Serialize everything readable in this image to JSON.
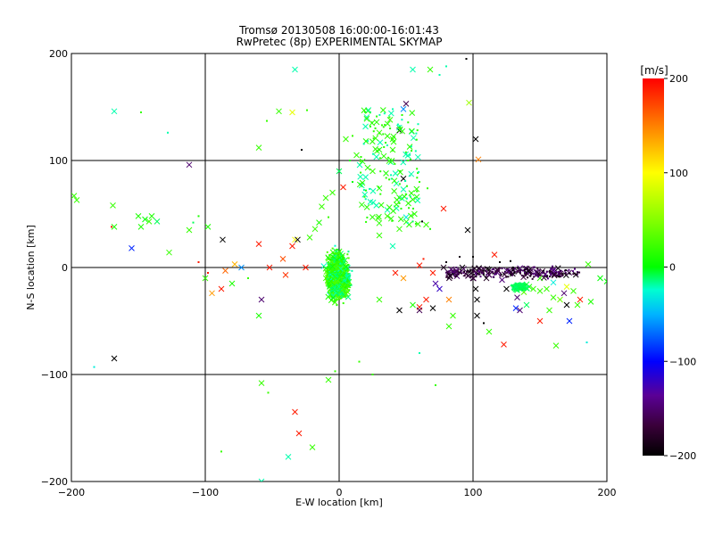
{
  "chart_data": {
    "type": "scatter",
    "title": "Tromsø 20130508 16:00:00-16:01:43",
    "subtitle": "RwPretec (8p) EXPERIMENTAL SKYMAP",
    "xlabel": "E-W location [km]",
    "ylabel": "N-S location [km]",
    "xlim": [
      -200,
      200
    ],
    "ylim": [
      -200,
      200
    ],
    "xticks": [
      "−200",
      "−100",
      "0",
      "100",
      "200"
    ],
    "yticks": [
      "−200",
      "−100",
      "0",
      "100",
      "200"
    ],
    "grid": true,
    "colorbar": {
      "label": "[m/s]",
      "range": [
        -200,
        200
      ],
      "ticks": [
        "200",
        "100",
        "0",
        "−100",
        "−200"
      ]
    },
    "markers": {
      "large": "cross",
      "small": "dot"
    },
    "points": [
      [
        -198,
        67,
        20,
        "x"
      ],
      [
        -196,
        63,
        20,
        "x"
      ],
      [
        -168,
        146,
        -20,
        "x"
      ],
      [
        -148,
        145,
        20,
        "."
      ],
      [
        -128,
        126,
        -20,
        "."
      ],
      [
        -112,
        96,
        -150,
        "x"
      ],
      [
        -169,
        58,
        20,
        "x"
      ],
      [
        -168,
        38,
        10,
        "x"
      ],
      [
        -150,
        48,
        10,
        "x"
      ],
      [
        -145,
        45,
        0,
        "x"
      ],
      [
        -140,
        48,
        10,
        "x"
      ],
      [
        -142,
        43,
        20,
        "x"
      ],
      [
        -148,
        38,
        10,
        "x"
      ],
      [
        -136,
        43,
        -10,
        "x"
      ],
      [
        -155,
        18,
        -90,
        "x"
      ],
      [
        -127,
        14,
        20,
        "x"
      ],
      [
        -112,
        35,
        20,
        "x"
      ],
      [
        -109,
        42,
        -10,
        "."
      ],
      [
        -98,
        38,
        10,
        "x"
      ],
      [
        -105,
        48,
        10,
        "."
      ],
      [
        -170,
        38,
        190,
        "."
      ],
      [
        -168,
        -85,
        -200,
        "x"
      ],
      [
        -183,
        -93,
        -30,
        "."
      ],
      [
        -87,
        26,
        -200,
        "x"
      ],
      [
        -85,
        -3,
        160,
        "x"
      ],
      [
        -88,
        -20,
        190,
        "x"
      ],
      [
        -95,
        -24,
        140,
        "x"
      ],
      [
        -80,
        -15,
        10,
        "x"
      ],
      [
        -60,
        22,
        190,
        "x"
      ],
      [
        -52,
        0,
        190,
        "x"
      ],
      [
        -42,
        8,
        170,
        "x"
      ],
      [
        -35,
        20,
        190,
        "x"
      ],
      [
        -33,
        26,
        100,
        "x"
      ],
      [
        -31,
        26,
        -200,
        "x"
      ],
      [
        -25,
        0,
        190,
        "x"
      ],
      [
        -40,
        -7,
        180,
        "x"
      ],
      [
        -58,
        -30,
        -150,
        "x"
      ],
      [
        -60,
        -45,
        10,
        "x"
      ],
      [
        -68,
        -10,
        20,
        "."
      ],
      [
        -73,
        0,
        -60,
        "x"
      ],
      [
        -78,
        3,
        130,
        "x"
      ],
      [
        -98,
        -5,
        190,
        "."
      ],
      [
        -100,
        -10,
        20,
        "x"
      ],
      [
        -105,
        5,
        190,
        "."
      ],
      [
        -60,
        112,
        20,
        "x"
      ],
      [
        -54,
        137,
        20,
        "."
      ],
      [
        -45,
        146,
        20,
        "x"
      ],
      [
        -35,
        145,
        90,
        "x"
      ],
      [
        -33,
        185,
        -20,
        "x"
      ],
      [
        -28,
        110,
        -200,
        "."
      ],
      [
        -24,
        147,
        20,
        "."
      ],
      [
        -58,
        -108,
        20,
        "x"
      ],
      [
        -53,
        -117,
        20,
        "."
      ],
      [
        -33,
        -135,
        190,
        "x"
      ],
      [
        -30,
        -155,
        190,
        "x"
      ],
      [
        -20,
        -168,
        20,
        "x"
      ],
      [
        -38,
        -177,
        -20,
        "x"
      ],
      [
        -58,
        -200,
        -20,
        "x"
      ],
      [
        -88,
        -172,
        20,
        "."
      ],
      [
        -8,
        -105,
        20,
        "x"
      ],
      [
        -3,
        -97,
        20,
        "."
      ],
      [
        15,
        -88,
        20,
        "."
      ],
      [
        25,
        -100,
        20,
        "."
      ],
      [
        72,
        -110,
        20,
        "."
      ],
      [
        55,
        185,
        -20,
        "x"
      ],
      [
        68,
        185,
        20,
        "x"
      ],
      [
        75,
        180,
        -20,
        "."
      ],
      [
        80,
        188,
        -20,
        "."
      ],
      [
        95,
        195,
        -200,
        "."
      ],
      [
        97,
        154,
        60,
        "x"
      ],
      [
        48,
        148,
        -60,
        "x"
      ],
      [
        50,
        153,
        -160,
        "x"
      ],
      [
        40,
        148,
        -20,
        "."
      ],
      [
        38,
        138,
        20,
        "x"
      ],
      [
        32,
        133,
        20,
        "."
      ],
      [
        45,
        128,
        -200,
        "x"
      ],
      [
        40,
        120,
        20,
        "x"
      ],
      [
        30,
        126,
        20,
        "x"
      ],
      [
        20,
        118,
        10,
        "x"
      ],
      [
        13,
        105,
        20,
        "x"
      ],
      [
        8,
        100,
        10,
        "."
      ],
      [
        30,
        110,
        10,
        "x"
      ],
      [
        40,
        110,
        20,
        "x"
      ],
      [
        25,
        90,
        20,
        "x"
      ],
      [
        35,
        88,
        10,
        "x"
      ],
      [
        48,
        83,
        -200,
        "x"
      ],
      [
        53,
        86,
        -20,
        "."
      ],
      [
        60,
        80,
        20,
        "."
      ],
      [
        66,
        74,
        20,
        "."
      ],
      [
        58,
        66,
        10,
        "x"
      ],
      [
        45,
        60,
        20,
        "."
      ],
      [
        36,
        48,
        20,
        "x"
      ],
      [
        29,
        46,
        20,
        "x"
      ],
      [
        48,
        73,
        -20,
        "x"
      ],
      [
        30,
        74,
        10,
        "x"
      ],
      [
        20,
        72,
        10,
        "."
      ],
      [
        10,
        80,
        0,
        "."
      ],
      [
        0,
        90,
        -10,
        "x"
      ],
      [
        5,
        120,
        20,
        "x"
      ],
      [
        10,
        123,
        20,
        "."
      ],
      [
        3,
        75,
        190,
        "x"
      ],
      [
        -5,
        70,
        20,
        "x"
      ],
      [
        -10,
        65,
        20,
        "x"
      ],
      [
        -13,
        57,
        20,
        "x"
      ],
      [
        -8,
        47,
        20,
        "."
      ],
      [
        -15,
        42,
        10,
        "x"
      ],
      [
        -18,
        36,
        20,
        "x"
      ],
      [
        -22,
        28,
        20,
        "x"
      ],
      [
        30,
        30,
        20,
        "x"
      ],
      [
        40,
        20,
        -20,
        "x"
      ],
      [
        45,
        36,
        20,
        "x"
      ],
      [
        50,
        47,
        -30,
        "x"
      ],
      [
        55,
        43,
        -10,
        "."
      ],
      [
        62,
        43,
        -200,
        "."
      ],
      [
        65,
        40,
        20,
        "x"
      ],
      [
        68,
        36,
        10,
        "."
      ],
      [
        78,
        55,
        190,
        "x"
      ],
      [
        96,
        35,
        -200,
        "x"
      ],
      [
        102,
        120,
        -200,
        "x"
      ],
      [
        104,
        101,
        150,
        "x"
      ],
      [
        42,
        -5,
        190,
        "x"
      ],
      [
        48,
        -10,
        140,
        "x"
      ],
      [
        60,
        2,
        190,
        "x"
      ],
      [
        63,
        8,
        190,
        "."
      ],
      [
        70,
        -5,
        190,
        "x"
      ],
      [
        65,
        -30,
        190,
        "x"
      ],
      [
        60,
        -37,
        190,
        "x"
      ],
      [
        70,
        -38,
        -200,
        "x"
      ],
      [
        60,
        -40,
        -160,
        "x"
      ],
      [
        55,
        -35,
        10,
        "x"
      ],
      [
        45,
        -40,
        -200,
        "x"
      ],
      [
        30,
        -30,
        20,
        "x"
      ],
      [
        85,
        -45,
        20,
        "x"
      ],
      [
        82,
        -30,
        150,
        "x"
      ],
      [
        88,
        -8,
        -150,
        "x"
      ],
      [
        82,
        -4,
        -180,
        "."
      ],
      [
        92,
        0,
        -200,
        "x"
      ],
      [
        78,
        0,
        -180,
        "x"
      ],
      [
        75,
        -20,
        -120,
        "x"
      ],
      [
        72,
        -15,
        -130,
        "x"
      ],
      [
        80,
        5,
        -190,
        "."
      ],
      [
        90,
        10,
        -190,
        "."
      ],
      [
        100,
        10,
        -200,
        "."
      ],
      [
        102,
        -20,
        -200,
        "x"
      ],
      [
        103,
        -30,
        -200,
        "x"
      ],
      [
        110,
        -10,
        -180,
        "x"
      ],
      [
        116,
        12,
        190,
        "x"
      ],
      [
        112,
        -2,
        -200,
        "x"
      ],
      [
        118,
        -2,
        -180,
        "x"
      ],
      [
        120,
        5,
        -200,
        "."
      ],
      [
        128,
        6,
        -200,
        "."
      ],
      [
        125,
        -20,
        -200,
        "x"
      ],
      [
        133,
        -28,
        -150,
        "x"
      ],
      [
        135,
        -40,
        -150,
        "x"
      ],
      [
        138,
        -23,
        30,
        "x"
      ],
      [
        142,
        -18,
        10,
        "x"
      ],
      [
        145,
        -20,
        20,
        "x"
      ],
      [
        150,
        -10,
        20,
        "x"
      ],
      [
        150,
        -22,
        20,
        "x"
      ],
      [
        155,
        -20,
        20,
        "x"
      ],
      [
        160,
        -28,
        20,
        "x"
      ],
      [
        160,
        -14,
        -30,
        "x"
      ],
      [
        165,
        -30,
        40,
        "x"
      ],
      [
        168,
        -24,
        -150,
        "x"
      ],
      [
        170,
        -18,
        90,
        "x"
      ],
      [
        175,
        -22,
        20,
        "x"
      ],
      [
        178,
        -35,
        20,
        "x"
      ],
      [
        188,
        -32,
        10,
        "x"
      ],
      [
        186,
        3,
        20,
        "x"
      ],
      [
        195,
        -10,
        0,
        "x"
      ],
      [
        200,
        -13,
        0,
        "x"
      ],
      [
        185,
        -70,
        -30,
        "."
      ],
      [
        162,
        -73,
        20,
        "x"
      ],
      [
        150,
        -50,
        190,
        "x"
      ],
      [
        140,
        -35,
        -10,
        "x"
      ],
      [
        132,
        -38,
        -90,
        "x"
      ],
      [
        123,
        -72,
        190,
        "x"
      ],
      [
        103,
        -45,
        -200,
        "x"
      ],
      [
        108,
        -52,
        -200,
        "."
      ],
      [
        112,
        -60,
        20,
        "x"
      ],
      [
        82,
        -55,
        20,
        "x"
      ],
      [
        60,
        -80,
        -20,
        "."
      ],
      [
        157,
        -40,
        20,
        "x"
      ],
      [
        172,
        -50,
        -90,
        "x"
      ],
      [
        180,
        -30,
        190,
        "x"
      ],
      [
        170,
        -35,
        -200,
        "x"
      ]
    ]
  }
}
